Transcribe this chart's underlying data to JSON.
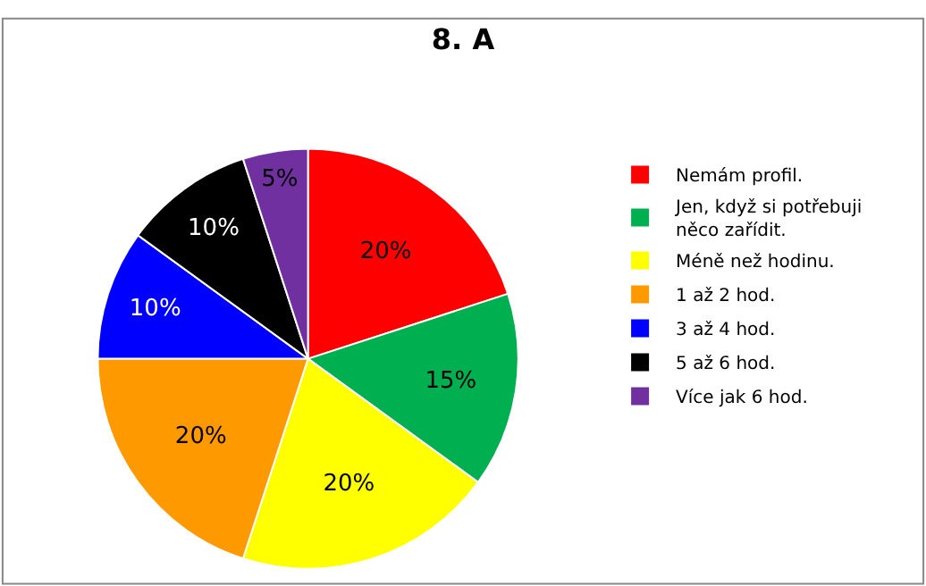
{
  "chart_data": {
    "type": "pie",
    "title": "8. A",
    "categories": [
      "Nemám profil.",
      "Jen, když si potřebuji něco zařídit.",
      "Méně než hodinu.",
      "1 až 2 hod.",
      "3 až 4 hod.",
      "5 až 6 hod.",
      "Více jak 6 hod."
    ],
    "values": [
      20,
      15,
      20,
      20,
      10,
      10,
      5
    ],
    "value_labels": [
      "20%",
      "15%",
      "20%",
      "20%",
      "10%",
      "10%",
      "5%"
    ],
    "colors": [
      "#ff0000",
      "#00b050",
      "#ffff00",
      "#ff9900",
      "#0000ff",
      "#000000",
      "#7030a0"
    ],
    "legend": "right"
  }
}
